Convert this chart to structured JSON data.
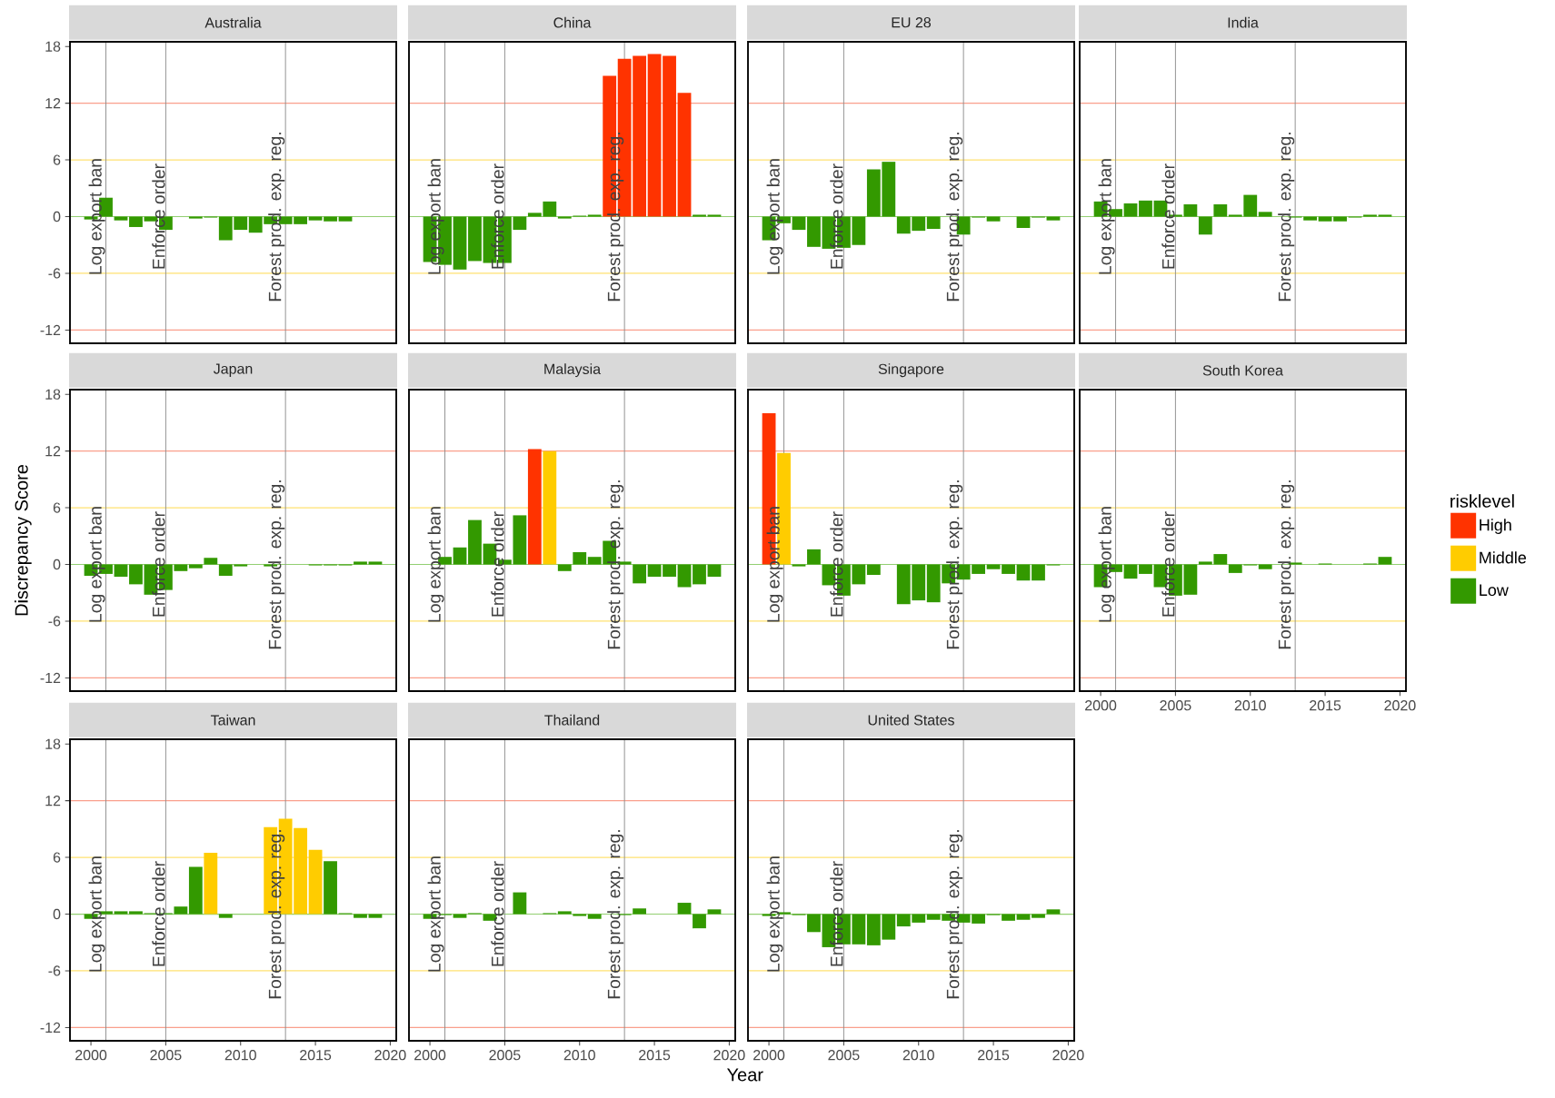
{
  "chart_data": [
    {
      "type": "bar",
      "title": "Australia",
      "tick_labels": "y",
      "series": [
        {
          "color": "#339900",
          "x": [
            2000,
            2001,
            2002,
            2003,
            2004,
            2005,
            2007,
            2008,
            2009,
            2010,
            2011,
            2012,
            2013,
            2014,
            2015,
            2016,
            2017
          ],
          "values": [
            -0.3,
            2.0,
            -0.4,
            -1.1,
            -0.5,
            -1.4,
            -0.2,
            -0.1,
            -2.5,
            -1.4,
            -1.7,
            -0.8,
            -0.8,
            -0.8,
            -0.4,
            -0.5,
            -0.5
          ]
        }
      ],
      "xlim": [
        1998.6,
        2020.4
      ],
      "ylim": [
        -13.4,
        18.5
      ],
      "xticks": [
        2000,
        2005,
        2010,
        2015,
        2020
      ],
      "yticks": [
        -12,
        -6,
        0,
        6,
        12,
        18
      ],
      "ref_lines": [
        {
          "axis": "y",
          "value": 12,
          "color": "#fa9f8c"
        },
        {
          "axis": "y",
          "value": -12,
          "color": "#fa9f8c"
        },
        {
          "axis": "y",
          "value": 6,
          "color": "#ffe270"
        },
        {
          "axis": "y",
          "value": -6,
          "color": "#ffe270"
        },
        {
          "axis": "y",
          "value": 0,
          "color": "#93cf72"
        },
        {
          "axis": "x",
          "value": 2001,
          "label": "Log export ban",
          "color": "#8c8c8c"
        },
        {
          "axis": "x",
          "value": 2005,
          "label": "Enforce order",
          "color": "#8c8c8c"
        },
        {
          "axis": "x",
          "value": 2013,
          "label": "Forest prod. exp. reg.",
          "color": "#8c8c8c"
        }
      ]
    },
    {
      "type": "bar",
      "title": "China",
      "tick_labels": false,
      "series": [
        {
          "color": "#ff3300",
          "x": [
            2012,
            2013,
            2014,
            2015,
            2016,
            2017
          ],
          "values": [
            14.9,
            16.7,
            17.0,
            17.2,
            17.0,
            13.1
          ]
        },
        {
          "color": "#339900",
          "x": [
            2000,
            2001,
            2002,
            2003,
            2004,
            2005,
            2006,
            2007,
            2008,
            2009,
            2010,
            2011,
            2018,
            2019
          ],
          "values": [
            -4.8,
            -5.1,
            -5.6,
            -4.7,
            -4.9,
            -4.9,
            -1.4,
            0.4,
            1.6,
            -0.2,
            0.1,
            0.2,
            0.2,
            0.2
          ]
        }
      ],
      "xlim": [
        1998.6,
        2020.4
      ],
      "ylim": [
        -13.4,
        18.5
      ],
      "xticks": [
        2000,
        2005,
        2010,
        2015,
        2020
      ],
      "yticks": [
        -12,
        -6,
        0,
        6,
        12,
        18
      ],
      "ref_lines": [
        {
          "axis": "y",
          "value": 12,
          "color": "#fa9f8c"
        },
        {
          "axis": "y",
          "value": -12,
          "color": "#fa9f8c"
        },
        {
          "axis": "y",
          "value": 6,
          "color": "#ffe270"
        },
        {
          "axis": "y",
          "value": -6,
          "color": "#ffe270"
        },
        {
          "axis": "y",
          "value": 0,
          "color": "#93cf72"
        },
        {
          "axis": "x",
          "value": 2001,
          "label": "Log export ban",
          "color": "#8c8c8c"
        },
        {
          "axis": "x",
          "value": 2005,
          "label": "Enforce order",
          "color": "#8c8c8c"
        },
        {
          "axis": "x",
          "value": 2013,
          "label": "Forest prod. exp. reg.",
          "color": "#8c8c8c"
        }
      ]
    },
    {
      "type": "bar",
      "title": "EU 28",
      "tick_labels": false,
      "series": [
        {
          "color": "#339900",
          "x": [
            2000,
            2001,
            2002,
            2003,
            2004,
            2005,
            2006,
            2007,
            2008,
            2009,
            2010,
            2011,
            2013,
            2014,
            2015,
            2017,
            2018,
            2019
          ],
          "values": [
            -2.5,
            -0.7,
            -1.4,
            -3.2,
            -3.4,
            -3.3,
            -3.0,
            5.0,
            5.8,
            -1.8,
            -1.5,
            -1.3,
            -1.9,
            -0.1,
            -0.5,
            -1.2,
            -0.1,
            -0.4
          ]
        }
      ],
      "xlim": [
        1998.6,
        2020.4
      ],
      "ylim": [
        -13.4,
        18.5
      ],
      "xticks": [
        2000,
        2005,
        2010,
        2015,
        2020
      ],
      "yticks": [
        -12,
        -6,
        0,
        6,
        12,
        18
      ],
      "ref_lines": [
        {
          "axis": "y",
          "value": 12,
          "color": "#fa9f8c"
        },
        {
          "axis": "y",
          "value": -12,
          "color": "#fa9f8c"
        },
        {
          "axis": "y",
          "value": 6,
          "color": "#ffe270"
        },
        {
          "axis": "y",
          "value": -6,
          "color": "#ffe270"
        },
        {
          "axis": "y",
          "value": 0,
          "color": "#93cf72"
        },
        {
          "axis": "x",
          "value": 2001,
          "label": "Log export ban",
          "color": "#8c8c8c"
        },
        {
          "axis": "x",
          "value": 2005,
          "label": "Enforce order",
          "color": "#8c8c8c"
        },
        {
          "axis": "x",
          "value": 2013,
          "label": "Forest prod. exp. reg.",
          "color": "#8c8c8c"
        }
      ]
    },
    {
      "type": "bar",
      "title": "India",
      "tick_labels": false,
      "series": [
        {
          "color": "#339900",
          "x": [
            2000,
            2001,
            2002,
            2003,
            2004,
            2005,
            2006,
            2007,
            2008,
            2009,
            2010,
            2011,
            2013,
            2014,
            2015,
            2016,
            2017,
            2018,
            2019
          ],
          "values": [
            1.6,
            0.8,
            1.4,
            1.7,
            1.7,
            0.2,
            1.3,
            -1.9,
            1.3,
            0.2,
            2.3,
            0.5,
            -0.1,
            -0.4,
            -0.5,
            -0.5,
            -0.1,
            0.2,
            0.2
          ]
        }
      ],
      "xlim": [
        1998.6,
        2020.4
      ],
      "ylim": [
        -13.4,
        18.5
      ],
      "xticks": [
        2000,
        2005,
        2010,
        2015,
        2020
      ],
      "yticks": [
        -12,
        -6,
        0,
        6,
        12,
        18
      ],
      "ref_lines": [
        {
          "axis": "y",
          "value": 12,
          "color": "#fa9f8c"
        },
        {
          "axis": "y",
          "value": -12,
          "color": "#fa9f8c"
        },
        {
          "axis": "y",
          "value": 6,
          "color": "#ffe270"
        },
        {
          "axis": "y",
          "value": -6,
          "color": "#ffe270"
        },
        {
          "axis": "y",
          "value": 0,
          "color": "#93cf72"
        },
        {
          "axis": "x",
          "value": 2001,
          "label": "Log export ban",
          "color": "#8c8c8c"
        },
        {
          "axis": "x",
          "value": 2005,
          "label": "Enforce order",
          "color": "#8c8c8c"
        },
        {
          "axis": "x",
          "value": 2013,
          "label": "Forest prod. exp. reg.",
          "color": "#8c8c8c"
        }
      ]
    },
    {
      "type": "bar",
      "title": "Japan",
      "ylabel": "Discrepancy Score",
      "tick_labels": "y",
      "series": [
        {
          "color": "#339900",
          "x": [
            2000,
            2001,
            2002,
            2003,
            2004,
            2005,
            2006,
            2007,
            2008,
            2009,
            2010,
            2012,
            2015,
            2016,
            2017,
            2018,
            2019
          ],
          "values": [
            -1.2,
            -1.0,
            -1.3,
            -2.1,
            -3.2,
            -2.7,
            -0.7,
            -0.4,
            0.7,
            -1.2,
            -0.2,
            -0.2,
            -0.1,
            -0.1,
            -0.1,
            0.3,
            0.3
          ]
        }
      ],
      "xlim": [
        1998.6,
        2020.4
      ],
      "ylim": [
        -13.4,
        18.5
      ],
      "xticks": [
        2000,
        2005,
        2010,
        2015,
        2020
      ],
      "yticks": [
        -12,
        -6,
        0,
        6,
        12,
        18
      ],
      "ref_lines": [
        {
          "axis": "y",
          "value": 12,
          "color": "#fa9f8c"
        },
        {
          "axis": "y",
          "value": -12,
          "color": "#fa9f8c"
        },
        {
          "axis": "y",
          "value": 6,
          "color": "#ffe270"
        },
        {
          "axis": "y",
          "value": -6,
          "color": "#ffe270"
        },
        {
          "axis": "y",
          "value": 0,
          "color": "#93cf72"
        },
        {
          "axis": "x",
          "value": 2001,
          "label": "Log export ban",
          "color": "#8c8c8c"
        },
        {
          "axis": "x",
          "value": 2005,
          "label": "Enforce order",
          "color": "#8c8c8c"
        },
        {
          "axis": "x",
          "value": 2013,
          "label": "Forest prod. exp. reg.",
          "color": "#8c8c8c"
        }
      ]
    },
    {
      "type": "bar",
      "title": "Malaysia",
      "tick_labels": false,
      "series": [
        {
          "color": "#ff3300",
          "x": [
            2007
          ],
          "values": [
            12.2
          ]
        },
        {
          "color": "#ffcc00",
          "x": [
            2008
          ],
          "values": [
            12.0
          ]
        },
        {
          "color": "#339900",
          "x": [
            2001,
            2002,
            2003,
            2004,
            2005,
            2006,
            2009,
            2010,
            2011,
            2012,
            2013,
            2014,
            2015,
            2016,
            2017,
            2018,
            2019
          ],
          "values": [
            0.8,
            1.8,
            4.7,
            2.2,
            0.5,
            5.2,
            -0.7,
            1.3,
            0.8,
            2.5,
            0.3,
            -2.0,
            -1.3,
            -1.3,
            -2.4,
            -2.1,
            -1.3
          ]
        }
      ],
      "xlim": [
        1998.6,
        2020.4
      ],
      "ylim": [
        -13.4,
        18.5
      ],
      "xticks": [
        2000,
        2005,
        2010,
        2015,
        2020
      ],
      "yticks": [
        -12,
        -6,
        0,
        6,
        12,
        18
      ],
      "ref_lines": [
        {
          "axis": "y",
          "value": 12,
          "color": "#fa9f8c"
        },
        {
          "axis": "y",
          "value": -12,
          "color": "#fa9f8c"
        },
        {
          "axis": "y",
          "value": 6,
          "color": "#ffe270"
        },
        {
          "axis": "y",
          "value": -6,
          "color": "#ffe270"
        },
        {
          "axis": "y",
          "value": 0,
          "color": "#93cf72"
        },
        {
          "axis": "x",
          "value": 2001,
          "label": "Log export ban",
          "color": "#8c8c8c"
        },
        {
          "axis": "x",
          "value": 2005,
          "label": "Enforce order",
          "color": "#8c8c8c"
        },
        {
          "axis": "x",
          "value": 2013,
          "label": "Forest prod. exp. reg.",
          "color": "#8c8c8c"
        }
      ]
    },
    {
      "type": "bar",
      "title": "Singapore",
      "tick_labels": false,
      "series": [
        {
          "color": "#ff3300",
          "x": [
            2000
          ],
          "values": [
            16.0
          ]
        },
        {
          "color": "#ffcc00",
          "x": [
            2001
          ],
          "values": [
            11.8
          ]
        },
        {
          "color": "#339900",
          "x": [
            2002,
            2003,
            2004,
            2005,
            2006,
            2007,
            2009,
            2010,
            2011,
            2012,
            2013,
            2014,
            2015,
            2016,
            2017,
            2018,
            2019
          ],
          "values": [
            -0.2,
            1.6,
            -2.2,
            -3.3,
            -2.1,
            -1.1,
            -4.2,
            -3.8,
            -4.0,
            -2.0,
            -1.6,
            -1.0,
            -0.5,
            -1.0,
            -1.7,
            -1.7,
            -0.1
          ]
        }
      ],
      "xlim": [
        1998.6,
        2020.4
      ],
      "ylim": [
        -13.4,
        18.5
      ],
      "xticks": [
        2000,
        2005,
        2010,
        2015,
        2020
      ],
      "yticks": [
        -12,
        -6,
        0,
        6,
        12,
        18
      ],
      "ref_lines": [
        {
          "axis": "y",
          "value": 12,
          "color": "#fa9f8c"
        },
        {
          "axis": "y",
          "value": -12,
          "color": "#fa9f8c"
        },
        {
          "axis": "y",
          "value": 6,
          "color": "#ffe270"
        },
        {
          "axis": "y",
          "value": -6,
          "color": "#ffe270"
        },
        {
          "axis": "y",
          "value": 0,
          "color": "#93cf72"
        },
        {
          "axis": "x",
          "value": 2001,
          "label": "Log export ban",
          "color": "#8c8c8c"
        },
        {
          "axis": "x",
          "value": 2005,
          "label": "Enforce order",
          "color": "#8c8c8c"
        },
        {
          "axis": "x",
          "value": 2013,
          "label": "Forest prod. exp. reg.",
          "color": "#8c8c8c"
        }
      ]
    },
    {
      "type": "bar",
      "title": "South Korea",
      "legend_title": "risklevel",
      "legend": "right",
      "tick_labels": "x",
      "series": [
        {
          "name": "High",
          "color": "#ff3300"
        },
        {
          "name": "Middle",
          "color": "#ffcc00"
        },
        {
          "name": "Low",
          "color": "#339900",
          "x": [
            2000,
            2001,
            2002,
            2003,
            2004,
            2005,
            2006,
            2007,
            2008,
            2009,
            2010,
            2011,
            2013,
            2015,
            2018,
            2019
          ],
          "values": [
            -2.4,
            -0.8,
            -1.5,
            -1.0,
            -2.4,
            -3.3,
            -3.2,
            0.3,
            1.1,
            -0.9,
            -0.1,
            -0.5,
            0.2,
            0.1,
            0.1,
            0.8
          ]
        }
      ],
      "xlim": [
        1998.6,
        2020.4
      ],
      "ylim": [
        -13.4,
        18.5
      ],
      "xticks": [
        2000,
        2005,
        2010,
        2015,
        2020
      ],
      "yticks": [
        -12,
        -6,
        0,
        6,
        12,
        18
      ],
      "ref_lines": [
        {
          "axis": "y",
          "value": 12,
          "color": "#fa9f8c"
        },
        {
          "axis": "y",
          "value": -12,
          "color": "#fa9f8c"
        },
        {
          "axis": "y",
          "value": 6,
          "color": "#ffe270"
        },
        {
          "axis": "y",
          "value": -6,
          "color": "#ffe270"
        },
        {
          "axis": "y",
          "value": 0,
          "color": "#93cf72"
        },
        {
          "axis": "x",
          "value": 2001,
          "label": "Log export ban",
          "color": "#8c8c8c"
        },
        {
          "axis": "x",
          "value": 2005,
          "label": "Enforce order",
          "color": "#8c8c8c"
        },
        {
          "axis": "x",
          "value": 2013,
          "label": "Forest prod. exp. reg.",
          "color": "#8c8c8c"
        }
      ]
    },
    {
      "type": "bar",
      "title": "Taiwan",
      "series": [
        {
          "color": "#ffcc00",
          "x": [
            2008,
            2012,
            2013,
            2014,
            2015
          ],
          "values": [
            6.5,
            9.2,
            10.1,
            9.1,
            6.8
          ]
        },
        {
          "color": "#339900",
          "x": [
            2000,
            2001,
            2002,
            2003,
            2004,
            2005,
            2006,
            2007,
            2009,
            2016,
            2017,
            2018,
            2019
          ],
          "values": [
            -0.5,
            0.3,
            0.3,
            0.3,
            0.1,
            0.1,
            0.8,
            5.0,
            -0.4,
            5.6,
            0.1,
            -0.4,
            -0.4
          ]
        }
      ],
      "xlim": [
        1998.6,
        2020.4
      ],
      "ylim": [
        -13.4,
        18.5
      ],
      "xticks": [
        2000,
        2005,
        2010,
        2015,
        2020
      ],
      "yticks": [
        -12,
        -6,
        0,
        6,
        12,
        18
      ],
      "ref_lines": [
        {
          "axis": "y",
          "value": 12,
          "color": "#fa9f8c"
        },
        {
          "axis": "y",
          "value": -12,
          "color": "#fa9f8c"
        },
        {
          "axis": "y",
          "value": 6,
          "color": "#ffe270"
        },
        {
          "axis": "y",
          "value": -6,
          "color": "#ffe270"
        },
        {
          "axis": "y",
          "value": 0,
          "color": "#93cf72"
        },
        {
          "axis": "x",
          "value": 2001,
          "label": "Log export ban",
          "color": "#8c8c8c"
        },
        {
          "axis": "x",
          "value": 2005,
          "label": "Enforce order",
          "color": "#8c8c8c"
        },
        {
          "axis": "x",
          "value": 2013,
          "label": "Forest prod. exp. reg.",
          "color": "#8c8c8c"
        }
      ]
    },
    {
      "type": "bar",
      "title": "Thailand",
      "xlabel": "Year",
      "tick_labels": "x",
      "series": [
        {
          "color": "#339900",
          "x": [
            2000,
            2001,
            2002,
            2003,
            2004,
            2006,
            2008,
            2009,
            2010,
            2011,
            2013,
            2014,
            2017,
            2018,
            2019
          ],
          "values": [
            -0.5,
            -0.1,
            -0.4,
            0.1,
            -0.7,
            2.3,
            0.1,
            0.3,
            -0.2,
            -0.5,
            -0.1,
            0.6,
            1.2,
            -1.5,
            0.5
          ]
        }
      ],
      "xlim": [
        1998.6,
        2020.4
      ],
      "ylim": [
        -13.4,
        18.5
      ],
      "xticks": [
        2000,
        2005,
        2010,
        2015,
        2020
      ],
      "yticks": [
        -12,
        -6,
        0,
        6,
        12,
        18
      ],
      "ref_lines": [
        {
          "axis": "y",
          "value": 12,
          "color": "#fa9f8c"
        },
        {
          "axis": "y",
          "value": -12,
          "color": "#fa9f8c"
        },
        {
          "axis": "y",
          "value": 6,
          "color": "#ffe270"
        },
        {
          "axis": "y",
          "value": -6,
          "color": "#ffe270"
        },
        {
          "axis": "y",
          "value": 0,
          "color": "#93cf72"
        },
        {
          "axis": "x",
          "value": 2001,
          "label": "Log export ban",
          "color": "#8c8c8c"
        },
        {
          "axis": "x",
          "value": 2005,
          "label": "Enforce order",
          "color": "#8c8c8c"
        },
        {
          "axis": "x",
          "value": 2013,
          "label": "Forest prod. exp. reg.",
          "color": "#8c8c8c"
        }
      ]
    },
    {
      "type": "bar",
      "title": "United States",
      "tick_labels": "x",
      "series": [
        {
          "color": "#339900",
          "x": [
            2000,
            2001,
            2002,
            2003,
            2004,
            2005,
            2006,
            2007,
            2008,
            2009,
            2010,
            2011,
            2012,
            2013,
            2014,
            2015,
            2016,
            2017,
            2018,
            2019
          ],
          "values": [
            -0.2,
            0.2,
            -0.1,
            -1.9,
            -3.5,
            -3.2,
            -3.2,
            -3.3,
            -2.7,
            -1.3,
            -0.9,
            -0.6,
            -0.7,
            -0.9,
            -1.0,
            -0.1,
            -0.7,
            -0.6,
            -0.4,
            0.5
          ]
        }
      ],
      "xlim": [
        1998.6,
        2020.4
      ],
      "ylim": [
        -13.4,
        18.5
      ],
      "xticks": [
        2000,
        2005,
        2010,
        2015,
        2020
      ],
      "yticks": [
        -12,
        -6,
        0,
        6,
        12,
        18
      ],
      "ref_lines": [
        {
          "axis": "y",
          "value": 12,
          "color": "#fa9f8c"
        },
        {
          "axis": "y",
          "value": -12,
          "color": "#fa9f8c"
        },
        {
          "axis": "y",
          "value": 6,
          "color": "#ffe270"
        },
        {
          "axis": "y",
          "value": -6,
          "color": "#ffe270"
        },
        {
          "axis": "y",
          "value": 0,
          "color": "#93cf72"
        },
        {
          "axis": "x",
          "value": 2001,
          "label": "Log export ban",
          "color": "#8c8c8c"
        },
        {
          "axis": "x",
          "value": 2005,
          "label": "Enforce order",
          "color": "#8c8c8c"
        },
        {
          "axis": "x",
          "value": 2013,
          "label": "Forest prod. exp. reg.",
          "color": "#8c8c8c"
        }
      ]
    }
  ]
}
